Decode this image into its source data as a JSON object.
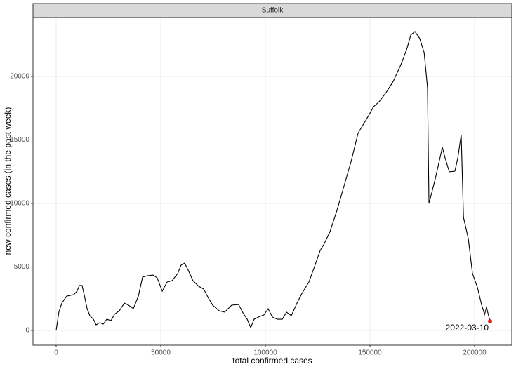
{
  "chart_data": {
    "type": "line",
    "facet": "Suffolk",
    "xlabel": "total confirmed cases",
    "ylabel": "new confirmed cases (in the past week)",
    "annotation": "2022-03-10",
    "color": "#000000",
    "highlight_color": "#e41a1c",
    "grid": true,
    "xlim": [
      -11074,
      217785
    ],
    "ylim": [
      -1160,
      24640
    ],
    "xticks": [
      0,
      50000,
      100000,
      150000,
      200000
    ],
    "yticks": [
      0,
      5000,
      10000,
      15000,
      20000
    ],
    "x": [
      0,
      1300,
      2700,
      5000,
      8400,
      10000,
      11100,
      12400,
      13400,
      14800,
      16100,
      17800,
      19100,
      20800,
      22500,
      24200,
      26200,
      27900,
      30200,
      32600,
      34600,
      36900,
      39300,
      41300,
      43600,
      46300,
      48300,
      50700,
      53000,
      55400,
      58100,
      59700,
      61400,
      63100,
      65400,
      68100,
      70500,
      72800,
      74800,
      77900,
      80500,
      83900,
      87200,
      89300,
      91300,
      93000,
      94600,
      97300,
      99300,
      101300,
      103400,
      105700,
      108100,
      110100,
      112400,
      115100,
      117500,
      120800,
      123500,
      126200,
      128200,
      130900,
      134200,
      137600,
      141000,
      144300,
      149300,
      151700,
      154400,
      157700,
      161100,
      165100,
      167800,
      169500,
      171500,
      173800,
      175900,
      177500,
      178200,
      181200,
      184600,
      185900,
      187900,
      190600,
      192000,
      193600,
      194700,
      197000,
      199000,
      201400,
      203400,
      204800,
      205700,
      206700,
      207400
    ],
    "values": [
      0,
      1440,
      2150,
      2700,
      2820,
      3100,
      3540,
      3540,
      2820,
      1710,
      1160,
      880,
      440,
      610,
      500,
      880,
      770,
      1270,
      1550,
      2150,
      1990,
      1710,
      2710,
      4200,
      4310,
      4360,
      4140,
      3090,
      3810,
      3920,
      4480,
      5140,
      5300,
      4750,
      3920,
      3480,
      3260,
      2540,
      1990,
      1550,
      1440,
      1990,
      2040,
      1380,
      880,
      220,
      880,
      1100,
      1220,
      1710,
      1050,
      880,
      880,
      1440,
      1160,
      2150,
      2930,
      3810,
      5030,
      6300,
      6850,
      7790,
      9450,
      11380,
      13320,
      15530,
      16910,
      17620,
      18010,
      18730,
      19610,
      21050,
      22270,
      23260,
      23540,
      22980,
      21880,
      19120,
      10000,
      11930,
      14420,
      13590,
      12490,
      12540,
      13590,
      15410,
      8900,
      7240,
      4480,
      3370,
      1990,
      1270,
      1820,
      1160,
      720
    ]
  }
}
